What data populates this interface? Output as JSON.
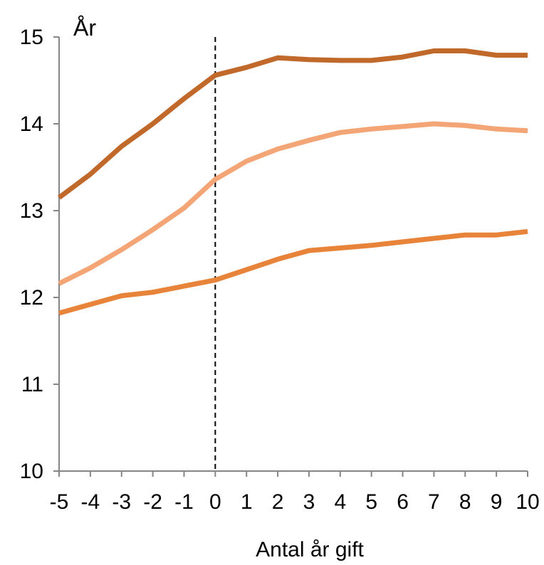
{
  "chart_data": {
    "type": "line",
    "title": "",
    "xlabel": "Antal år gift",
    "ylabel": "År",
    "ylim": [
      10,
      15
    ],
    "yticks": [
      10,
      11,
      12,
      13,
      14,
      15
    ],
    "x": [
      -5,
      -4,
      -3,
      -2,
      -1,
      0,
      1,
      2,
      3,
      4,
      5,
      6,
      7,
      8,
      9,
      10
    ],
    "reference_line": {
      "x": 0,
      "style": "dashed"
    },
    "grid": false,
    "legend": "none",
    "series": [
      {
        "color": "#c0692b",
        "values": [
          13.15,
          13.42,
          13.74,
          14.0,
          14.29,
          14.56,
          14.65,
          14.76,
          14.74,
          14.73,
          14.73,
          14.77,
          14.84,
          14.84,
          14.79,
          14.79
        ]
      },
      {
        "color": "#f4a575",
        "values": [
          12.16,
          12.34,
          12.55,
          12.78,
          13.03,
          13.36,
          13.57,
          13.71,
          13.81,
          13.9,
          13.94,
          13.97,
          14.0,
          13.98,
          13.94,
          13.92
        ]
      },
      {
        "color": "#e8843a",
        "values": [
          11.82,
          11.92,
          12.02,
          12.06,
          12.13,
          12.2,
          12.32,
          12.44,
          12.54,
          12.57,
          12.6,
          12.64,
          12.68,
          12.72,
          12.72,
          12.76
        ]
      }
    ]
  }
}
